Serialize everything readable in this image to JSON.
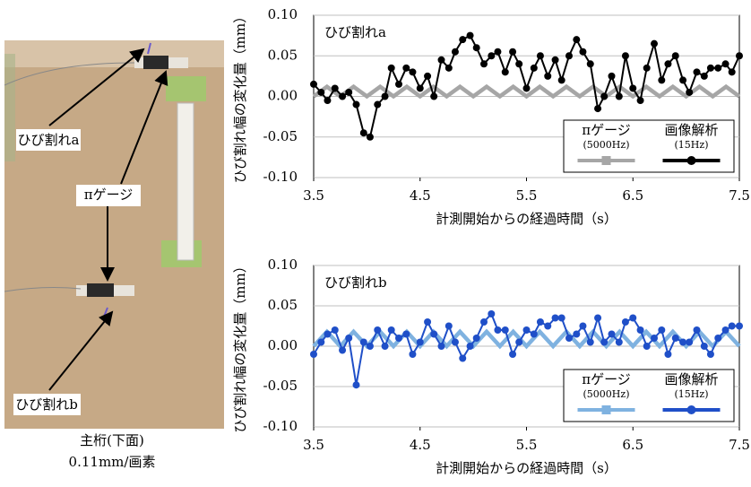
{
  "photo": {
    "labels": [
      "ひび割れa",
      "πゲージ",
      "ひび割れb"
    ],
    "caption": [
      "主桁(下面)",
      "0.11mm/画素"
    ]
  },
  "chart_data": [
    {
      "type": "line",
      "title": "ひび割れa",
      "x_label": "計測開始からの経過時間（s）",
      "y_label": "ひび割れ幅の変化量（mm）",
      "xlim": [
        3.5,
        7.5
      ],
      "xticks": [
        3.5,
        4.5,
        5.5,
        6.5,
        7.5
      ],
      "ylim": [
        -0.1,
        0.1
      ],
      "yticks": [
        {
          "value": -0.1,
          "label": "-0.10"
        },
        -0.05,
        {
          "value": 0,
          "label": "0.00"
        },
        0.05,
        {
          "value": 0.1,
          "label": "0.10"
        }
      ],
      "grid": true,
      "legend": "lower right",
      "series": [
        {
          "name": "πゲージ",
          "note": "(5000Hz)",
          "color": "#a6a6a6",
          "marker": "square",
          "x": [
            3.5,
            3.625,
            3.75,
            3.875,
            4,
            4.125,
            4.25,
            4.375,
            4.5,
            4.625,
            4.75,
            4.875,
            5,
            5.125,
            5.25,
            5.375,
            5.5,
            5.625,
            5.75,
            5.875,
            6,
            6.125,
            6.25,
            6.375,
            6.5,
            6.625,
            6.75,
            6.875,
            7,
            7.125,
            7.25,
            7.375,
            7.5
          ],
          "values": [
            0,
            0.012,
            0,
            0.012,
            0,
            0.012,
            0,
            0.012,
            0,
            0.012,
            0,
            0.012,
            0,
            0.012,
            0,
            0.012,
            0,
            0.012,
            0,
            0.012,
            0,
            0.012,
            0,
            0.012,
            0,
            0.012,
            0,
            0.012,
            0,
            0.012,
            0,
            0.012,
            0
          ]
        },
        {
          "name": "画像解析",
          "note": "(15Hz)",
          "color": "#000000",
          "marker": "circle",
          "x": [
            3.5,
            3.57,
            3.63,
            3.7,
            3.77,
            3.83,
            3.9,
            3.97,
            4.03,
            4.1,
            4.17,
            4.23,
            4.3,
            4.37,
            4.43,
            4.5,
            4.57,
            4.63,
            4.7,
            4.77,
            4.83,
            4.9,
            4.97,
            5.03,
            5.1,
            5.17,
            5.23,
            5.3,
            5.37,
            5.43,
            5.5,
            5.57,
            5.63,
            5.7,
            5.77,
            5.83,
            5.9,
            5.97,
            6.03,
            6.1,
            6.17,
            6.23,
            6.3,
            6.37,
            6.43,
            6.5,
            6.57,
            6.63,
            6.7,
            6.77,
            6.83,
            6.9,
            6.97,
            7.03,
            7.1,
            7.17,
            7.23,
            7.3,
            7.37,
            7.43,
            7.5
          ],
          "values": [
            0.015,
            0.005,
            -0.005,
            0.01,
            0,
            0.005,
            -0.01,
            -0.045,
            -0.05,
            -0.01,
            0,
            0.035,
            0.015,
            0.035,
            0.03,
            0.01,
            0.025,
            0,
            0.045,
            0.035,
            0.055,
            0.07,
            0.075,
            0.06,
            0.04,
            0.05,
            0.055,
            0.03,
            0.055,
            0.04,
            0.01,
            0.035,
            0.05,
            0.025,
            0.045,
            0.02,
            0.05,
            0.07,
            0.055,
            0.04,
            -0.015,
            0,
            0.025,
            0,
            0.05,
            0.01,
            -0.005,
            0.035,
            0.065,
            0.02,
            0.04,
            0.05,
            0.02,
            0.005,
            0.03,
            0.025,
            0.035,
            0.035,
            0.04,
            0.03,
            0.05
          ]
        }
      ]
    },
    {
      "type": "line",
      "title": "ひび割れb",
      "x_label": "計測開始からの経過時間（s）",
      "y_label": "ひび割れ幅の変化量（mm）",
      "xlim": [
        3.5,
        7.5
      ],
      "xticks": [
        3.5,
        4.5,
        5.5,
        6.5,
        7.5
      ],
      "ylim": [
        -0.1,
        0.1
      ],
      "yticks": [
        {
          "value": -0.1,
          "label": "-0.10"
        },
        -0.05,
        {
          "value": 0,
          "label": "0.00"
        },
        0.05,
        {
          "value": 0.1,
          "label": "0.10"
        }
      ],
      "grid": true,
      "legend": "lower right",
      "series": [
        {
          "name": "πゲージ",
          "note": "(5000Hz)",
          "color": "#7fb2e0",
          "marker": "square",
          "x": [
            3.5,
            3.625,
            3.75,
            3.875,
            4,
            4.125,
            4.25,
            4.375,
            4.5,
            4.625,
            4.75,
            4.875,
            5,
            5.125,
            5.25,
            5.375,
            5.5,
            5.625,
            5.75,
            5.875,
            6,
            6.125,
            6.25,
            6.375,
            6.5,
            6.625,
            6.75,
            6.875,
            7,
            7.125,
            7.25,
            7.375,
            7.5
          ],
          "values": [
            0,
            0.018,
            0,
            0.018,
            0,
            0.018,
            0,
            0.018,
            0,
            0.018,
            0,
            0.018,
            0,
            0.018,
            0,
            0.018,
            0,
            0.018,
            0,
            0.018,
            0,
            0.018,
            0,
            0.018,
            0,
            0.018,
            0,
            0.018,
            0,
            0.018,
            0,
            0.018,
            0
          ]
        },
        {
          "name": "画像解析",
          "note": "(15Hz)",
          "color": "#1f4fc8",
          "marker": "circle",
          "x": [
            3.5,
            3.57,
            3.63,
            3.7,
            3.77,
            3.83,
            3.9,
            3.97,
            4.03,
            4.1,
            4.17,
            4.23,
            4.3,
            4.37,
            4.43,
            4.5,
            4.57,
            4.63,
            4.7,
            4.77,
            4.83,
            4.9,
            4.97,
            5.03,
            5.1,
            5.17,
            5.23,
            5.3,
            5.37,
            5.43,
            5.5,
            5.57,
            5.63,
            5.7,
            5.77,
            5.83,
            5.9,
            5.97,
            6.03,
            6.1,
            6.17,
            6.23,
            6.3,
            6.37,
            6.43,
            6.5,
            6.57,
            6.63,
            6.7,
            6.77,
            6.83,
            6.9,
            6.97,
            7.03,
            7.1,
            7.17,
            7.23,
            7.3,
            7.37,
            7.43,
            7.5
          ],
          "values": [
            -0.01,
            0.005,
            0.015,
            0.02,
            -0.005,
            0.01,
            -0.048,
            0.005,
            0,
            0.02,
            0,
            0.02,
            0.01,
            0.015,
            -0.01,
            0.005,
            0.03,
            0.015,
            0,
            0.025,
            0.005,
            -0.015,
            0,
            0.01,
            0.03,
            0.04,
            0.02,
            0.02,
            -0.01,
            0.005,
            0.02,
            0.015,
            0.03,
            0.025,
            0.035,
            0.035,
            0.01,
            0.015,
            0.025,
            0.005,
            0.035,
            0.005,
            0.015,
            0.005,
            0.03,
            0.035,
            0.02,
            0,
            0.01,
            0.02,
            -0.01,
            0.01,
            0.005,
            0.005,
            0.02,
            0,
            -0.01,
            0.01,
            0.02,
            0.025,
            0.025
          ]
        }
      ]
    }
  ]
}
